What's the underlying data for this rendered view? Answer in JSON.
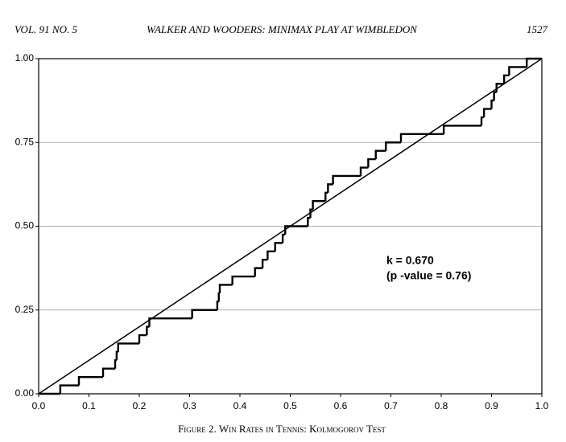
{
  "header": {
    "volume": "VOL. 91 NO. 5",
    "title": "WALKER AND WOODERS: MINIMAX PLAY AT WIMBLEDON",
    "page": "1527"
  },
  "chart_data": {
    "type": "step",
    "xlim": [
      0,
      1
    ],
    "ylim": [
      0,
      1
    ],
    "xticks": [
      {
        "value": 0,
        "label": "0.0"
      },
      0.1,
      0.2,
      0.3,
      0.4,
      0.5,
      0.6,
      0.7,
      0.8,
      0.9,
      {
        "value": 1,
        "label": "1.0"
      }
    ],
    "yticks": [
      {
        "value": 0,
        "label": "0.00"
      },
      {
        "value": 0.25,
        "label": "0.25"
      },
      {
        "value": 0.5,
        "label": "0.50"
      },
      {
        "value": 0.75,
        "label": "0.75"
      },
      {
        "value": 1,
        "label": "1.00"
      }
    ],
    "grid": true,
    "series": [
      {
        "type": "step",
        "color": "#000000",
        "x": [
          0,
          0.043,
          0.08,
          0.128,
          0.152,
          0.155,
          0.158,
          0.2,
          0.215,
          0.22,
          0.305,
          0.355,
          0.358,
          0.36,
          0.385,
          0.43,
          0.445,
          0.455,
          0.47,
          0.485,
          0.49,
          0.535,
          0.54,
          0.545,
          0.57,
          0.575,
          0.585,
          0.64,
          0.655,
          0.67,
          0.69,
          0.72,
          0.805,
          0.88,
          0.885,
          0.9,
          0.905,
          0.91,
          0.925,
          0.935,
          0.97
        ],
        "values": [
          0,
          0.025,
          0.05,
          0.075,
          0.1,
          0.125,
          0.15,
          0.175,
          0.2,
          0.225,
          0.25,
          0.275,
          0.3,
          0.325,
          0.35,
          0.375,
          0.4,
          0.425,
          0.45,
          0.475,
          0.5,
          0.525,
          0.55,
          0.575,
          0.6,
          0.625,
          0.65,
          0.675,
          0.7,
          0.725,
          0.75,
          0.775,
          0.8,
          0.825,
          0.85,
          0.875,
          0.9,
          0.925,
          0.95,
          0.975,
          1
        ]
      },
      {
        "type": "line",
        "color": "#000000",
        "x": [
          0,
          1
        ],
        "values": [
          0,
          1
        ]
      }
    ],
    "annotations": [
      "k = 0.670",
      "(p -value = 0.76)"
    ]
  },
  "caption": "Figure 2. Win Rates in Tennis: Kolmogorov Test"
}
